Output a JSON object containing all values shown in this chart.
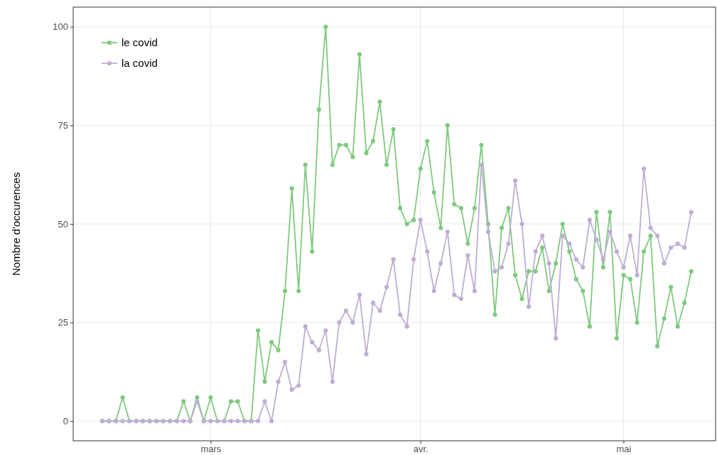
{
  "chart_data": {
    "type": "line",
    "ylabel": "Nombre d'occurences",
    "categories": [
      null,
      null,
      null,
      null,
      null,
      null,
      null,
      null,
      null,
      null,
      null,
      null,
      null,
      null,
      null,
      null,
      "mars",
      null,
      null,
      null,
      null,
      null,
      null,
      null,
      null,
      null,
      null,
      null,
      null,
      null,
      null,
      null,
      null,
      null,
      null,
      null,
      null,
      null,
      null,
      null,
      null,
      null,
      null,
      null,
      null,
      null,
      null,
      "avr.",
      null,
      null,
      null,
      null,
      null,
      null,
      null,
      null,
      null,
      null,
      null,
      null,
      null,
      null,
      null,
      null,
      null,
      null,
      null,
      null,
      null,
      null,
      null,
      null,
      null,
      null,
      null,
      null,
      null,
      "mai",
      null,
      null,
      null,
      null,
      null,
      null,
      null,
      null,
      null,
      null
    ],
    "ylim": [
      -5,
      105
    ],
    "yticks": [
      0,
      25,
      50,
      75,
      100
    ],
    "grid": true,
    "legend": "top left",
    "marker": "circle",
    "line_style": "solid",
    "series": [
      {
        "name": "le covid",
        "color": "#7fc97f",
        "values": [
          0,
          0,
          0,
          6,
          0,
          0,
          0,
          0,
          0,
          0,
          0,
          0,
          5,
          0,
          6,
          0,
          6,
          0,
          0,
          5,
          5,
          0,
          0,
          23,
          10,
          20,
          18,
          33,
          59,
          33,
          65,
          43,
          79,
          100,
          65,
          70,
          70,
          67,
          93,
          68,
          71,
          81,
          65,
          74,
          54,
          50,
          51,
          64,
          71,
          58,
          49,
          75,
          55,
          54,
          45,
          54,
          70,
          50,
          27,
          49,
          54,
          37,
          31,
          38,
          38,
          44,
          33,
          40,
          50,
          43,
          36,
          33,
          24,
          53,
          39,
          53,
          21,
          37,
          36,
          25,
          43,
          47,
          19,
          26,
          34,
          24,
          30,
          38
        ]
      },
      {
        "name": "la covid",
        "color": "#beaed4",
        "values": [
          0,
          0,
          0,
          0,
          0,
          0,
          0,
          0,
          0,
          0,
          0,
          0,
          0,
          0,
          5,
          0,
          0,
          0,
          0,
          0,
          0,
          0,
          0,
          0,
          5,
          0,
          10,
          15,
          8,
          9,
          24,
          20,
          18,
          23,
          10,
          25,
          28,
          25,
          32,
          17,
          30,
          28,
          34,
          41,
          27,
          24,
          41,
          51,
          43,
          33,
          40,
          48,
          32,
          31,
          42,
          33,
          65,
          48,
          38,
          39,
          45,
          61,
          50,
          29,
          43,
          47,
          40,
          21,
          47,
          45,
          41,
          39,
          51,
          46,
          41,
          48,
          43,
          39,
          47,
          37,
          64,
          49,
          47,
          40,
          44,
          45,
          44,
          53
        ]
      }
    ]
  }
}
